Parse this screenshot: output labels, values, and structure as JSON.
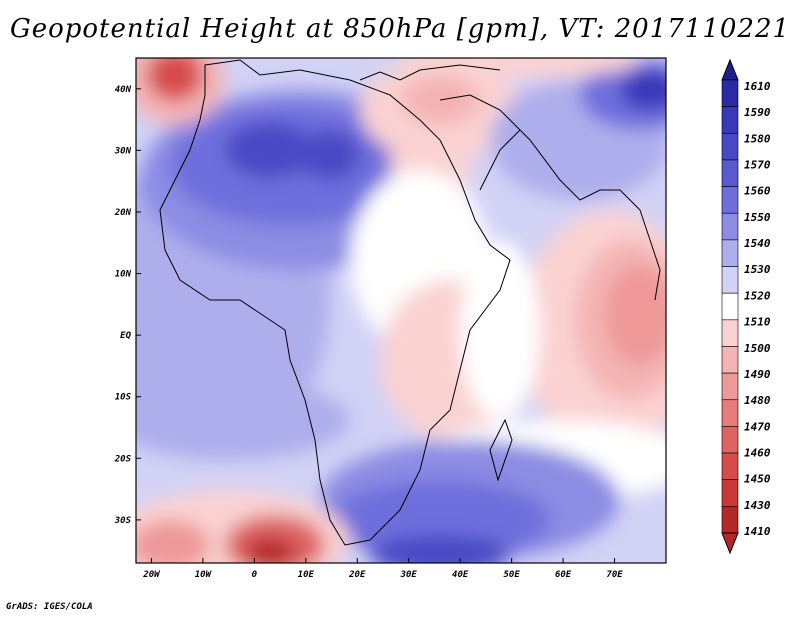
{
  "title": "Geopotential Height at 850hPa [gpm], VT: 2017110221",
  "credit": "GrADS: IGES/COLA",
  "map": {
    "lon_range": [
      -23,
      80
    ],
    "lat_range": [
      -37,
      45
    ],
    "lon_ticks": [
      {
        "value": -20,
        "label": "20W"
      },
      {
        "value": -10,
        "label": "10W"
      },
      {
        "value": 0,
        "label": "0"
      },
      {
        "value": 10,
        "label": "10E"
      },
      {
        "value": 20,
        "label": "20E"
      },
      {
        "value": 30,
        "label": "30E"
      },
      {
        "value": 40,
        "label": "40E"
      },
      {
        "value": 50,
        "label": "50E"
      },
      {
        "value": 60,
        "label": "60E"
      },
      {
        "value": 70,
        "label": "70E"
      }
    ],
    "lat_ticks": [
      {
        "value": 40,
        "label": "40N"
      },
      {
        "value": 30,
        "label": "30N"
      },
      {
        "value": 20,
        "label": "20N"
      },
      {
        "value": 10,
        "label": "10N"
      },
      {
        "value": 0,
        "label": "EQ"
      },
      {
        "value": -10,
        "label": "10S"
      },
      {
        "value": -20,
        "label": "20S"
      },
      {
        "value": -30,
        "label": "30S"
      }
    ]
  },
  "colorbar": {
    "levels": [
      {
        "label": "1610",
        "color": "#1e1e8c"
      },
      {
        "label": "1590",
        "color": "#2a2aa6"
      },
      {
        "label": "1580",
        "color": "#3838b8"
      },
      {
        "label": "1570",
        "color": "#4848c4"
      },
      {
        "label": "1560",
        "color": "#5a5ad0"
      },
      {
        "label": "1550",
        "color": "#6e6edc"
      },
      {
        "label": "1540",
        "color": "#8c8ce4"
      },
      {
        "label": "1530",
        "color": "#aeaeec"
      },
      {
        "label": "1520",
        "color": "#d2d2f6"
      },
      {
        "label": "1510",
        "color": "#ffffff"
      },
      {
        "label": "1500",
        "color": "#fad2d2"
      },
      {
        "label": "1490",
        "color": "#f4b4b4"
      },
      {
        "label": "1480",
        "color": "#ee9898"
      },
      {
        "label": "1470",
        "color": "#e67c7c"
      },
      {
        "label": "1460",
        "color": "#de6464"
      },
      {
        "label": "1450",
        "color": "#d64c4c"
      },
      {
        "label": "1430",
        "color": "#c83838"
      },
      {
        "label": "1410",
        "color": "#b42828"
      }
    ]
  }
}
